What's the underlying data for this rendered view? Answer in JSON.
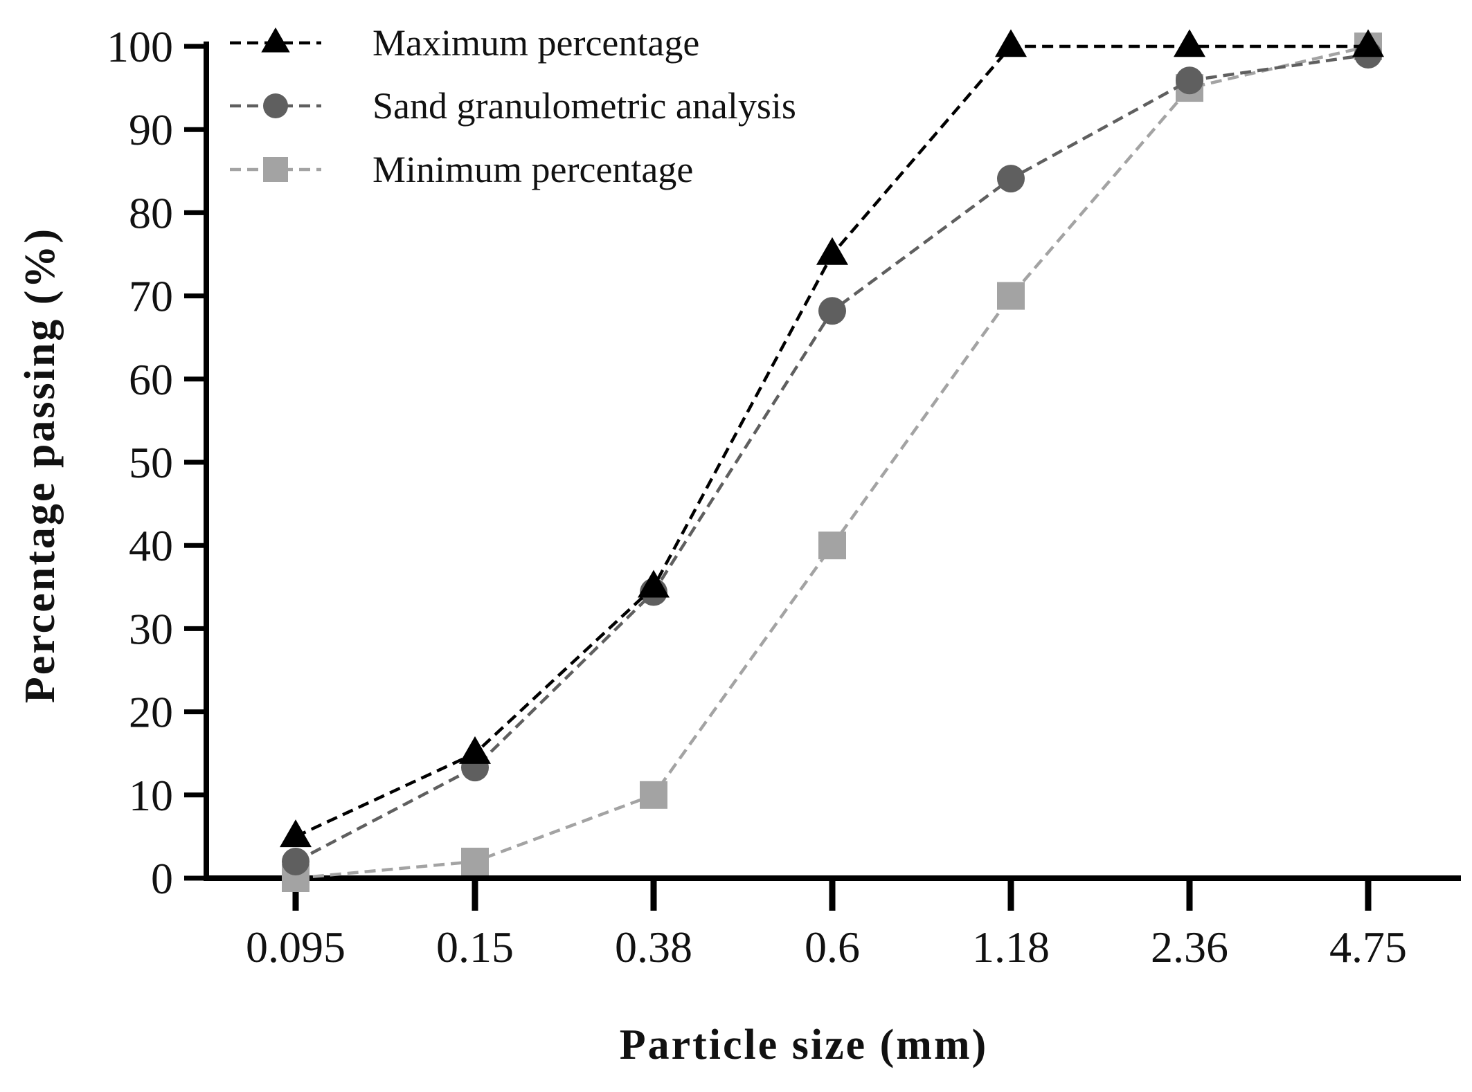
{
  "chart_data": {
    "type": "line",
    "title": "",
    "xlabel": "Particle size (mm)",
    "ylabel": "Percentage passing (%)",
    "categories": [
      "0.095",
      "0.15",
      "0.38",
      "0.6",
      "1.18",
      "2.36",
      "4.75"
    ],
    "yticks": [
      "0",
      "10",
      "20",
      "30",
      "40",
      "50",
      "60",
      "70",
      "80",
      "90",
      "100"
    ],
    "ylim": [
      0,
      100
    ],
    "grid": false,
    "legend_position": "top-left",
    "series": [
      {
        "name": "Maximum percentage",
        "marker": "triangle",
        "color": "#000000",
        "values": [
          5,
          15,
          35,
          75,
          100,
          100,
          100
        ]
      },
      {
        "name": "Sand granulometric analysis",
        "marker": "circle",
        "color": "#5f5f5f",
        "values": [
          2,
          13.3,
          34.4,
          68.2,
          84.1,
          95.9,
          99
        ]
      },
      {
        "name": "Minimum percentage",
        "marker": "square",
        "color": "#a3a3a3",
        "values": [
          0,
          2,
          10,
          40,
          70,
          95,
          100
        ]
      }
    ]
  }
}
